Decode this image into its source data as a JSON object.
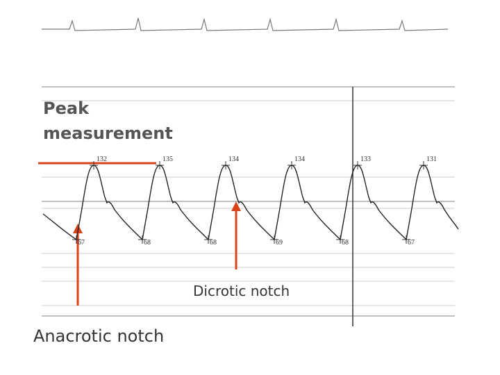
{
  "annotations": {
    "peak_measurement": [
      "Peak",
      "measurement"
    ],
    "dicrotic_notch": "Dicrotic notch",
    "anacrotic_notch": "Anacrotic notch"
  },
  "beats": [
    {
      "systolic": 132,
      "diastolic": 67
    },
    {
      "systolic": 135,
      "diastolic": 68
    },
    {
      "systolic": 134,
      "diastolic": 68
    },
    {
      "systolic": 134,
      "diastolic": 69
    },
    {
      "systolic": 133,
      "diastolic": 68
    },
    {
      "systolic": 131,
      "diastolic": 67
    }
  ]
}
